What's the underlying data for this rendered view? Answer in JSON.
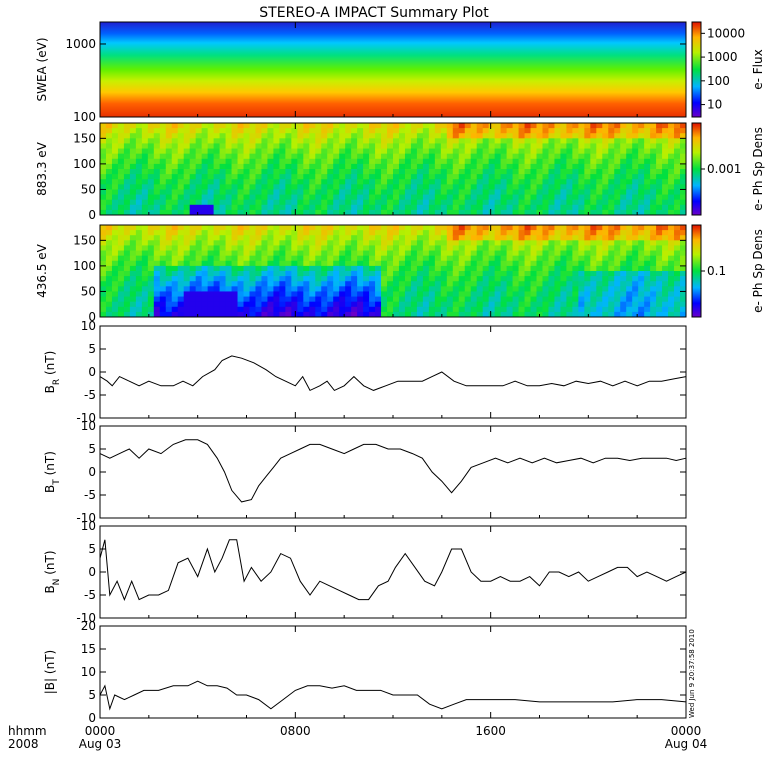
{
  "chart_data": {
    "title": "STEREO-A IMPACT Summary Plot",
    "type": "multi-panel time series (spectrograms and line plots)",
    "time_axis": {
      "ticks": [
        {
          "hour": 0,
          "time": "0000",
          "date": "Aug 03"
        },
        {
          "hour": 8,
          "time": "0800",
          "date": ""
        },
        {
          "hour": 16,
          "time": "1600",
          "date": ""
        },
        {
          "hour": 24,
          "time": "0000",
          "date": "Aug 04"
        }
      ],
      "label_line1": "hhmm",
      "label_line2": "2008",
      "range_hours": [
        0,
        24
      ]
    },
    "timestamp": "Wed Jun  9 20:37:58 2010",
    "spectrograms": [
      {
        "ylabel": "SWEA (eV)",
        "yscale": "log",
        "ylim": [
          100,
          2000
        ],
        "yticks": [
          "1000",
          "100"
        ],
        "yticks_values": [
          1000,
          100
        ],
        "colorbar_label": "e- Flux",
        "colorbar_scale": "log",
        "colorbar_range": [
          3,
          30000
        ],
        "colorbar_ticks": [
          "10000",
          "1000",
          "100",
          "10"
        ],
        "colorbar_ticks_values": [
          10000,
          1000,
          100,
          10
        ]
      },
      {
        "ylabel": "883.3 eV",
        "yscale": "linear",
        "ylim": [
          0,
          180
        ],
        "yticks": [
          "150",
          "100",
          "50",
          "0"
        ],
        "yticks_values": [
          150,
          100,
          50,
          0
        ],
        "colorbar_label": "e- Ph Sp Dens",
        "colorbar_scale": "log",
        "colorbar_range": [
          0.0001,
          0.01
        ],
        "colorbar_ticks": [
          "0.001"
        ],
        "colorbar_ticks_values": [
          0.001
        ]
      },
      {
        "ylabel": "436.5 eV",
        "yscale": "linear",
        "ylim": [
          0,
          180
        ],
        "yticks": [
          "150",
          "100",
          "50",
          "0"
        ],
        "yticks_values": [
          150,
          100,
          50,
          0
        ],
        "colorbar_label": "e- Ph Sp Dens",
        "colorbar_scale": "log",
        "colorbar_range": [
          0.01,
          1
        ],
        "colorbar_ticks": [
          "0.1"
        ],
        "colorbar_ticks_values": [
          0.1
        ]
      }
    ],
    "line_panels": [
      {
        "ylabel_main": "B",
        "ylabel_sub": "R",
        "ylabel_suffix": " (nT)",
        "ylim": [
          -10,
          10
        ],
        "yticks": [
          "10",
          "5",
          "0",
          "-5",
          "-10"
        ],
        "yticks_values": [
          10,
          5,
          0,
          -5,
          -10
        ],
        "points": [
          [
            0,
            -1
          ],
          [
            0.3,
            -2
          ],
          [
            0.5,
            -3
          ],
          [
            0.8,
            -1
          ],
          [
            1.2,
            -2
          ],
          [
            1.6,
            -3
          ],
          [
            2.0,
            -2
          ],
          [
            2.5,
            -3
          ],
          [
            3.0,
            -3
          ],
          [
            3.4,
            -2
          ],
          [
            3.8,
            -3
          ],
          [
            4.2,
            -1
          ],
          [
            4.7,
            0.5
          ],
          [
            5.0,
            2.5
          ],
          [
            5.4,
            3.5
          ],
          [
            5.8,
            3
          ],
          [
            6.3,
            2
          ],
          [
            6.8,
            0.5
          ],
          [
            7.2,
            -1
          ],
          [
            7.6,
            -2
          ],
          [
            8.0,
            -3
          ],
          [
            8.3,
            -1
          ],
          [
            8.6,
            -4
          ],
          [
            9.0,
            -3
          ],
          [
            9.3,
            -2
          ],
          [
            9.6,
            -4
          ],
          [
            10.0,
            -3
          ],
          [
            10.4,
            -1
          ],
          [
            10.8,
            -3
          ],
          [
            11.2,
            -4
          ],
          [
            11.7,
            -3
          ],
          [
            12.2,
            -2
          ],
          [
            12.7,
            -2
          ],
          [
            13.2,
            -2
          ],
          [
            13.6,
            -1
          ],
          [
            14.0,
            0
          ],
          [
            14.5,
            -2
          ],
          [
            15.0,
            -3
          ],
          [
            15.5,
            -3
          ],
          [
            16.0,
            -3
          ],
          [
            16.5,
            -3
          ],
          [
            17.0,
            -2
          ],
          [
            17.5,
            -3
          ],
          [
            18.0,
            -3
          ],
          [
            18.5,
            -2.5
          ],
          [
            19.0,
            -3
          ],
          [
            19.5,
            -2
          ],
          [
            20.0,
            -2.5
          ],
          [
            20.5,
            -2
          ],
          [
            21.0,
            -3
          ],
          [
            21.5,
            -2
          ],
          [
            22.0,
            -3
          ],
          [
            22.5,
            -2
          ],
          [
            23.0,
            -2
          ],
          [
            23.5,
            -1.5
          ],
          [
            24.0,
            -1
          ]
        ]
      },
      {
        "ylabel_main": "B",
        "ylabel_sub": "T",
        "ylabel_suffix": " (nT)",
        "ylim": [
          -10,
          10
        ],
        "yticks": [
          "10",
          "5",
          "0",
          "-5",
          "-10"
        ],
        "yticks_values": [
          10,
          5,
          0,
          -5,
          -10
        ],
        "points": [
          [
            0,
            4
          ],
          [
            0.4,
            3
          ],
          [
            0.8,
            4
          ],
          [
            1.2,
            5
          ],
          [
            1.6,
            3
          ],
          [
            2.0,
            5
          ],
          [
            2.5,
            4
          ],
          [
            3.0,
            6
          ],
          [
            3.5,
            7
          ],
          [
            4.0,
            7
          ],
          [
            4.4,
            6
          ],
          [
            4.8,
            3
          ],
          [
            5.1,
            0
          ],
          [
            5.4,
            -4
          ],
          [
            5.8,
            -6.5
          ],
          [
            6.2,
            -6
          ],
          [
            6.5,
            -3
          ],
          [
            6.8,
            -1
          ],
          [
            7.1,
            1
          ],
          [
            7.4,
            3
          ],
          [
            7.8,
            4
          ],
          [
            8.2,
            5
          ],
          [
            8.6,
            6
          ],
          [
            9.0,
            6
          ],
          [
            9.5,
            5
          ],
          [
            10.0,
            4
          ],
          [
            10.4,
            5
          ],
          [
            10.8,
            6
          ],
          [
            11.3,
            6
          ],
          [
            11.8,
            5
          ],
          [
            12.3,
            5
          ],
          [
            12.8,
            4
          ],
          [
            13.2,
            3
          ],
          [
            13.6,
            0
          ],
          [
            14.0,
            -2
          ],
          [
            14.4,
            -4.5
          ],
          [
            14.8,
            -2
          ],
          [
            15.2,
            1
          ],
          [
            15.7,
            2
          ],
          [
            16.2,
            3
          ],
          [
            16.7,
            2
          ],
          [
            17.2,
            3
          ],
          [
            17.7,
            2
          ],
          [
            18.2,
            3
          ],
          [
            18.7,
            2
          ],
          [
            19.2,
            2.5
          ],
          [
            19.7,
            3
          ],
          [
            20.2,
            2
          ],
          [
            20.7,
            3
          ],
          [
            21.2,
            3
          ],
          [
            21.7,
            2.5
          ],
          [
            22.2,
            3
          ],
          [
            22.7,
            3
          ],
          [
            23.2,
            3
          ],
          [
            23.6,
            2.5
          ],
          [
            24.0,
            3
          ]
        ]
      },
      {
        "ylabel_main": "B",
        "ylabel_sub": "N",
        "ylabel_suffix": " (nT)",
        "ylim": [
          -10,
          10
        ],
        "yticks": [
          "10",
          "5",
          "0",
          "-5",
          "-10"
        ],
        "yticks_values": [
          10,
          5,
          0,
          -5,
          -10
        ],
        "points": [
          [
            0,
            3
          ],
          [
            0.2,
            7
          ],
          [
            0.4,
            -5
          ],
          [
            0.7,
            -2
          ],
          [
            1.0,
            -6
          ],
          [
            1.3,
            -2
          ],
          [
            1.6,
            -6
          ],
          [
            2.0,
            -5
          ],
          [
            2.4,
            -5
          ],
          [
            2.8,
            -4
          ],
          [
            3.2,
            2
          ],
          [
            3.6,
            3
          ],
          [
            4.0,
            -1
          ],
          [
            4.4,
            5
          ],
          [
            4.7,
            0
          ],
          [
            5.0,
            3
          ],
          [
            5.3,
            7
          ],
          [
            5.6,
            7
          ],
          [
            5.9,
            -2
          ],
          [
            6.2,
            1
          ],
          [
            6.6,
            -2
          ],
          [
            7.0,
            0
          ],
          [
            7.4,
            4
          ],
          [
            7.8,
            3
          ],
          [
            8.2,
            -2
          ],
          [
            8.6,
            -5
          ],
          [
            9.0,
            -2
          ],
          [
            9.4,
            -3
          ],
          [
            9.8,
            -4
          ],
          [
            10.2,
            -5
          ],
          [
            10.6,
            -6
          ],
          [
            11.0,
            -6
          ],
          [
            11.4,
            -3
          ],
          [
            11.8,
            -2
          ],
          [
            12.1,
            1
          ],
          [
            12.5,
            4
          ],
          [
            12.9,
            1
          ],
          [
            13.3,
            -2
          ],
          [
            13.7,
            -3
          ],
          [
            14.0,
            0
          ],
          [
            14.4,
            5
          ],
          [
            14.8,
            5
          ],
          [
            15.2,
            0
          ],
          [
            15.6,
            -2
          ],
          [
            16.0,
            -2
          ],
          [
            16.4,
            -1
          ],
          [
            16.8,
            -2
          ],
          [
            17.2,
            -2
          ],
          [
            17.6,
            -1
          ],
          [
            18.0,
            -3
          ],
          [
            18.4,
            0
          ],
          [
            18.8,
            0
          ],
          [
            19.2,
            -1
          ],
          [
            19.6,
            0
          ],
          [
            20.0,
            -2
          ],
          [
            20.4,
            -1
          ],
          [
            20.8,
            0
          ],
          [
            21.2,
            1
          ],
          [
            21.6,
            1
          ],
          [
            22.0,
            -1
          ],
          [
            22.4,
            0
          ],
          [
            22.8,
            -1
          ],
          [
            23.2,
            -2
          ],
          [
            23.6,
            -1
          ],
          [
            24.0,
            0
          ]
        ]
      },
      {
        "ylabel_main": "|B|",
        "ylabel_sub": "",
        "ylabel_suffix": " (nT)",
        "ylim": [
          0,
          20
        ],
        "yticks": [
          "20",
          "15",
          "10",
          "5",
          "0"
        ],
        "yticks_values": [
          20,
          15,
          10,
          5,
          0
        ],
        "points": [
          [
            0,
            5
          ],
          [
            0.2,
            7
          ],
          [
            0.4,
            2
          ],
          [
            0.6,
            5
          ],
          [
            1.0,
            4
          ],
          [
            1.4,
            5
          ],
          [
            1.8,
            6
          ],
          [
            2.4,
            6
          ],
          [
            3.0,
            7
          ],
          [
            3.6,
            7
          ],
          [
            4.0,
            8
          ],
          [
            4.4,
            7
          ],
          [
            4.8,
            7
          ],
          [
            5.2,
            6.5
          ],
          [
            5.6,
            5
          ],
          [
            6.0,
            5
          ],
          [
            6.5,
            4
          ],
          [
            7.0,
            2
          ],
          [
            7.5,
            4
          ],
          [
            8.0,
            6
          ],
          [
            8.5,
            7
          ],
          [
            9.0,
            7
          ],
          [
            9.5,
            6.5
          ],
          [
            10.0,
            7
          ],
          [
            10.5,
            6
          ],
          [
            11.0,
            6
          ],
          [
            11.5,
            6
          ],
          [
            12.0,
            5
          ],
          [
            12.5,
            5
          ],
          [
            13.0,
            5
          ],
          [
            13.5,
            3
          ],
          [
            14.0,
            2
          ],
          [
            14.5,
            3
          ],
          [
            15.0,
            4
          ],
          [
            15.5,
            4
          ],
          [
            16.0,
            4
          ],
          [
            17.0,
            4
          ],
          [
            18.0,
            3.5
          ],
          [
            19.0,
            3.5
          ],
          [
            20.0,
            3.5
          ],
          [
            21.0,
            3.5
          ],
          [
            22.0,
            4
          ],
          [
            23.0,
            4
          ],
          [
            24.0,
            3.5
          ]
        ]
      }
    ]
  }
}
